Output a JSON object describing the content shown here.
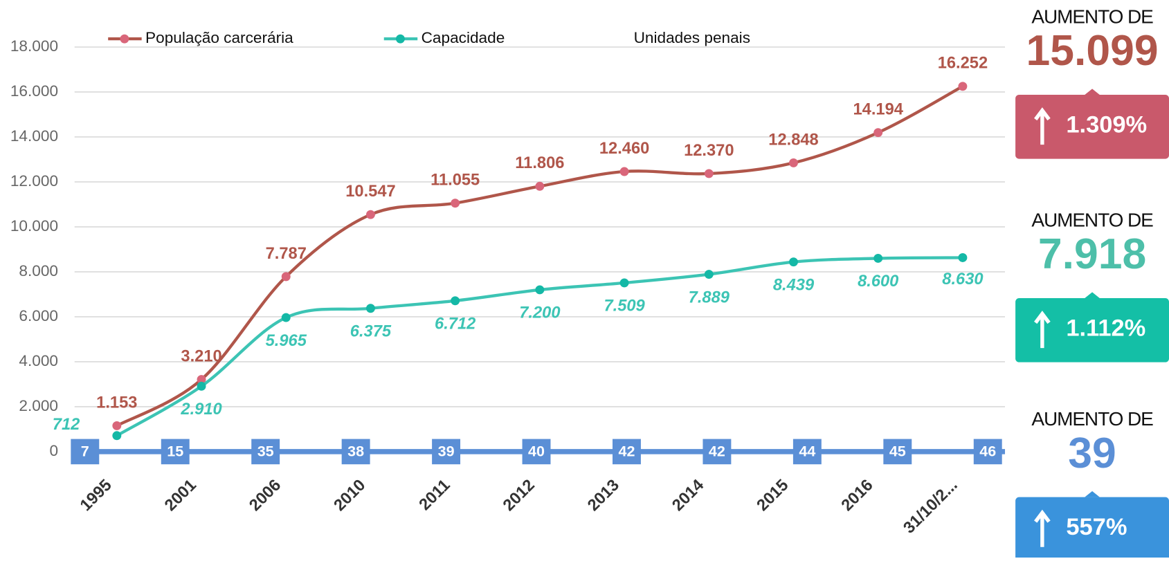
{
  "chart_data": {
    "type": "line",
    "categories": [
      "1995",
      "2001",
      "2006",
      "2010",
      "2011",
      "2012",
      "2013",
      "2014",
      "2015",
      "2016",
      "31/10/2..."
    ],
    "series": [
      {
        "name": "População carcerária",
        "color": "#b0564a",
        "marker_color": "#d9667a",
        "values": [
          1153,
          3210,
          7787,
          10547,
          11055,
          11806,
          12460,
          12370,
          12848,
          14194,
          16252
        ],
        "value_labels": [
          "1.153",
          "3.210",
          "7.787",
          "10.547",
          "11.055",
          "11.806",
          "12.460",
          "12.370",
          "12.848",
          "14.194",
          "16.252"
        ]
      },
      {
        "name": "Capacidade",
        "color": "#3cc4b4",
        "marker_color": "#14b8a6",
        "values": [
          712,
          2910,
          5965,
          6375,
          6712,
          7200,
          7509,
          7889,
          8439,
          8600,
          8630
        ],
        "value_labels": [
          "712",
          "2.910",
          "5.965",
          "6.375",
          "6.712",
          "7.200",
          "7.509",
          "7.889",
          "8.439",
          "8.600",
          "8.630"
        ]
      },
      {
        "name": "Unidades penais",
        "color": "#5b8fd6",
        "values": [
          7,
          15,
          35,
          38,
          39,
          40,
          42,
          42,
          44,
          45,
          46
        ]
      }
    ],
    "ylim": [
      0,
      18000
    ],
    "yticks": [
      0,
      {
        "value": 2000,
        "label": "2.000"
      },
      {
        "value": 4000,
        "label": "4.000"
      },
      {
        "value": 6000,
        "label": "6.000"
      },
      {
        "value": 8000,
        "label": "8.000"
      },
      {
        "value": 10000,
        "label": "10.000"
      },
      {
        "value": 12000,
        "label": "12.000"
      },
      {
        "value": 14000,
        "label": "14.000"
      },
      {
        "value": 16000,
        "label": "16.000"
      },
      {
        "value": 18000,
        "label": "18.000"
      }
    ],
    "grid": true
  },
  "panels": [
    {
      "heading": "AUMENTO  DE",
      "value": "15.099",
      "change": "1.309%",
      "text_color": "#b0564a",
      "box_color": "#c9596b"
    },
    {
      "heading": "AUMENTO  DE",
      "value": "7.918",
      "change": "1.112%",
      "text_color": "#4dbfa9",
      "box_color": "#14bfa6"
    },
    {
      "heading": "AUMENTO DE",
      "value": "39",
      "change": "557%",
      "text_color": "#5b8fd6",
      "box_color": "#3a93dc"
    }
  ]
}
